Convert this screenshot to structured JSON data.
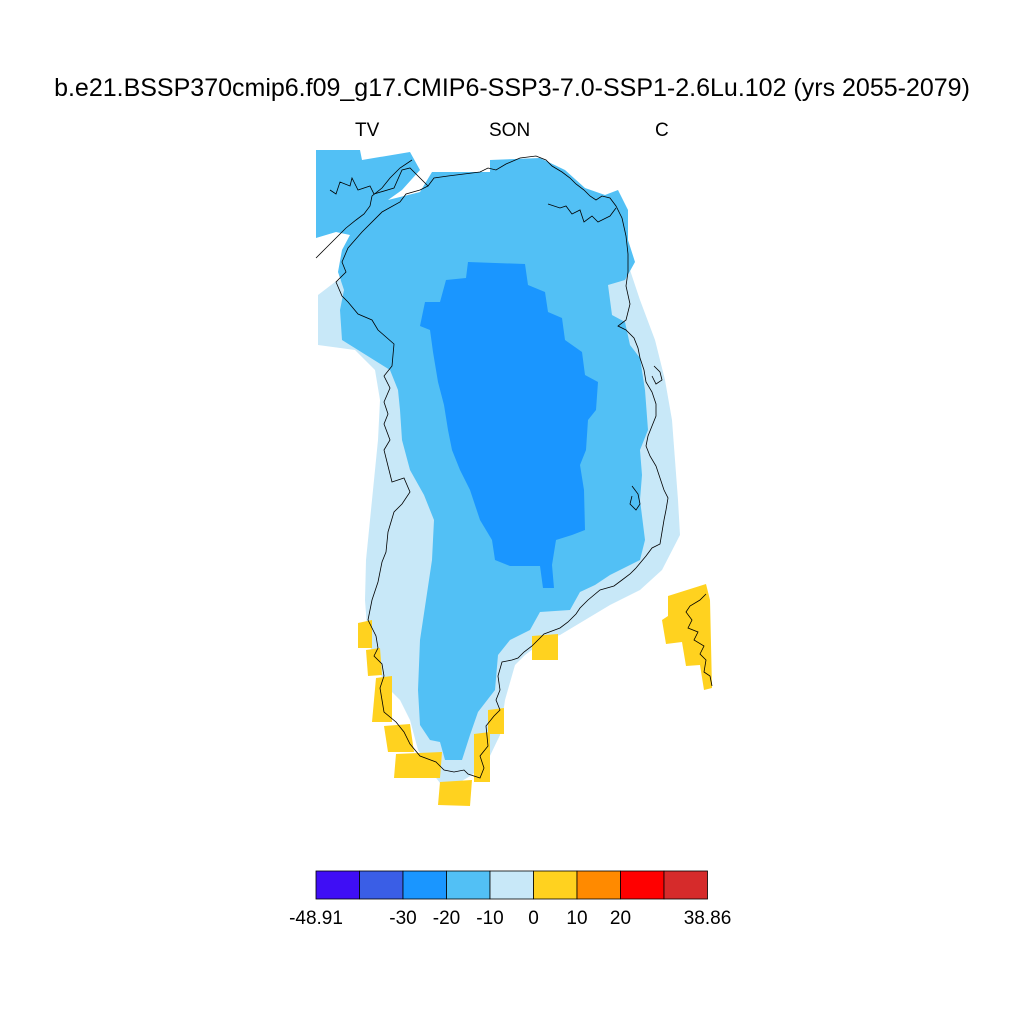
{
  "figure": {
    "title": "b.e21.BSSP370cmip6.f09_g17.CMIP6-SSP3-7.0-SSP1-2.6Lu.102 (yrs 2055-2079)",
    "left_string": "TV",
    "center_string": "SON",
    "right_string": "C"
  },
  "map": {
    "region": "Greenland",
    "colors": {
      "bin_-30_-20": "#1a96ff",
      "bin_-20_-10": "#52c0f5",
      "bin_-10_0": "#c8e8f8",
      "bin_0_10": "#ffd21f",
      "coastline": "#000000"
    }
  },
  "colorbar": {
    "colors": [
      "#3f0ef5",
      "#3a5ee6",
      "#1a96ff",
      "#52c0f5",
      "#c8e8f8",
      "#ffd21f",
      "#ff8a00",
      "#ff0000",
      "#d62b2b"
    ],
    "tick_labels": [
      "-48.91",
      "-30",
      "-20",
      "-10",
      "0",
      "10",
      "20",
      "38.86"
    ],
    "min": -48.91,
    "max": 38.86,
    "levels": [
      -30,
      -20,
      -10,
      0,
      10,
      20
    ]
  }
}
